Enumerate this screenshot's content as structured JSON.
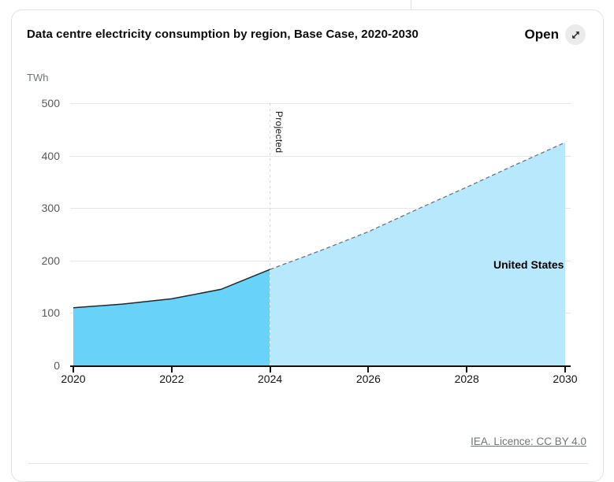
{
  "header": {
    "title": "Data centre electricity consumption by region, Base Case, 2020-2030",
    "open_label": "Open",
    "open_icon": "expand-arrow-icon"
  },
  "footer": {
    "license_link": "IEA. Licence: CC BY 4.0"
  },
  "colors": {
    "historical_fill": "#68d2f8",
    "projected_fill": "#b7e8fc",
    "historical_line": "#23272b",
    "projected_line": "#6a7680",
    "grid": "#e7e7e7",
    "axis": "#111111",
    "divider_dash_above": "#d9d9d9",
    "divider_dash_inside": "#ffffff"
  },
  "chart_data": {
    "type": "area",
    "title": "Data centre electricity consumption by region, Base Case, 2020-2030",
    "ylabel": "TWh",
    "xlabel": "",
    "unit_label": "TWh",
    "series_label": "United States",
    "projected_label": "Projected",
    "projection_start_year": 2024,
    "x": [
      2020,
      2021,
      2022,
      2023,
      2024,
      2025,
      2026,
      2027,
      2028,
      2029,
      2030
    ],
    "series": [
      {
        "name": "United States",
        "values": [
          110,
          117,
          127,
          145,
          183,
          218,
          255,
          298,
          340,
          383,
          425
        ]
      }
    ],
    "xticks": [
      2020,
      2022,
      2024,
      2026,
      2028,
      2030
    ],
    "yticks": [
      0,
      100,
      200,
      300,
      400,
      500
    ],
    "ylim": [
      0,
      500
    ],
    "xlim": [
      2020,
      2030
    ],
    "grid": true,
    "legend_position": "inside-right"
  }
}
